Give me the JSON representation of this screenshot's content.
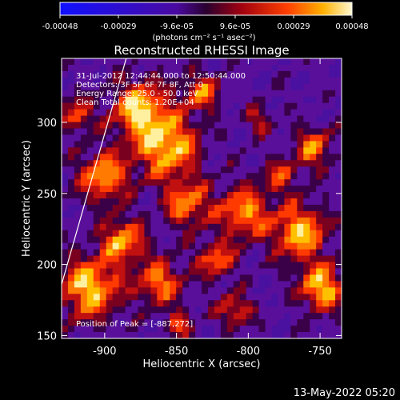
{
  "colorbar": {
    "tick_labels": [
      "-0.00048",
      "-0.00029",
      "-9.6e-05",
      "9.6e-05",
      "0.00029",
      "0.00048"
    ],
    "unit_text": "(photons cm⁻² s⁻¹ asec⁻²)"
  },
  "chart_data": {
    "type": "heatmap",
    "title": "Reconstructed RHESSI Image",
    "xlabel": "Heliocentric X (arcsec)",
    "ylabel": "Heliocentric Y (arcsec)",
    "xlim": [
      -930,
      -735
    ],
    "ylim": [
      148,
      345
    ],
    "x_ticks": [
      "-900",
      "-850",
      "-800",
      "-750"
    ],
    "y_ticks": [
      "300",
      "250",
      "200",
      "150"
    ],
    "x_tick_values": [
      -900,
      -850,
      -800,
      -750
    ],
    "y_tick_values": [
      300,
      250,
      200,
      150
    ],
    "info_lines": [
      "31-Jul-2012 12:44:44.000 to 12:50:44.000",
      "Detectors: 3F 5F 6F 7F 8F, Att 0",
      "Energy Range: 25.0 - 50.0 keV",
      "Clean    Total counts: 1.20E+04"
    ],
    "peak_text": "Position of Peak = [-887,272]",
    "peak_position": [
      -887,
      272
    ],
    "colormap_range": [
      -0.00048,
      0.00048
    ],
    "limb_line": [
      [
        -930,
        186
      ],
      [
        -885,
        345
      ]
    ]
  },
  "footer": {
    "timestamp": "13-May-2022 05:20"
  }
}
